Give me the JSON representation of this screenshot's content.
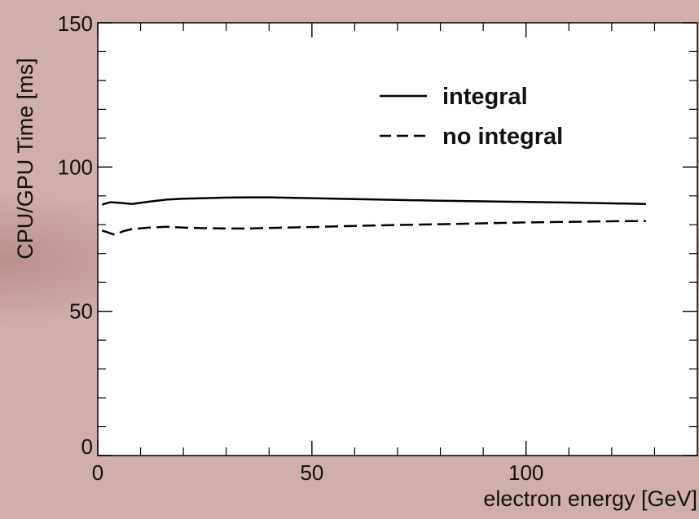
{
  "chart_data": {
    "type": "line",
    "title": "",
    "xlabel": "electron energy [GeV]",
    "ylabel": "CPU/GPU Time [ms]",
    "xlim": [
      0,
      140
    ],
    "ylim": [
      0,
      150
    ],
    "x_ticks": [
      0,
      50,
      100
    ],
    "y_ticks": [
      0,
      50,
      100,
      150
    ],
    "grid": false,
    "legend_position": "top-right",
    "series": [
      {
        "name": "integral",
        "line_style": "solid",
        "color": "#000000",
        "x": [
          1,
          3,
          5,
          8,
          12,
          16,
          20,
          25,
          30,
          35,
          40,
          50,
          60,
          70,
          80,
          90,
          100,
          110,
          120,
          128
        ],
        "y": [
          87,
          87.8,
          87.6,
          87.2,
          88,
          88.7,
          89,
          89.2,
          89.4,
          89.5,
          89.5,
          89.2,
          88.9,
          88.6,
          88.3,
          88.1,
          87.9,
          87.7,
          87.4,
          87.2
        ]
      },
      {
        "name": "no integral",
        "line_style": "dashed",
        "color": "#000000",
        "x": [
          1,
          2,
          4,
          6,
          8,
          12,
          16,
          20,
          25,
          30,
          35,
          40,
          50,
          60,
          70,
          80,
          90,
          100,
          110,
          120,
          128
        ],
        "y": [
          78,
          77.5,
          76.5,
          77.8,
          78.5,
          79,
          79.3,
          79,
          78.8,
          78.7,
          78.7,
          78.9,
          79.2,
          79.6,
          79.9,
          80.2,
          80.5,
          80.8,
          81,
          81.2,
          81.3
        ]
      }
    ]
  }
}
